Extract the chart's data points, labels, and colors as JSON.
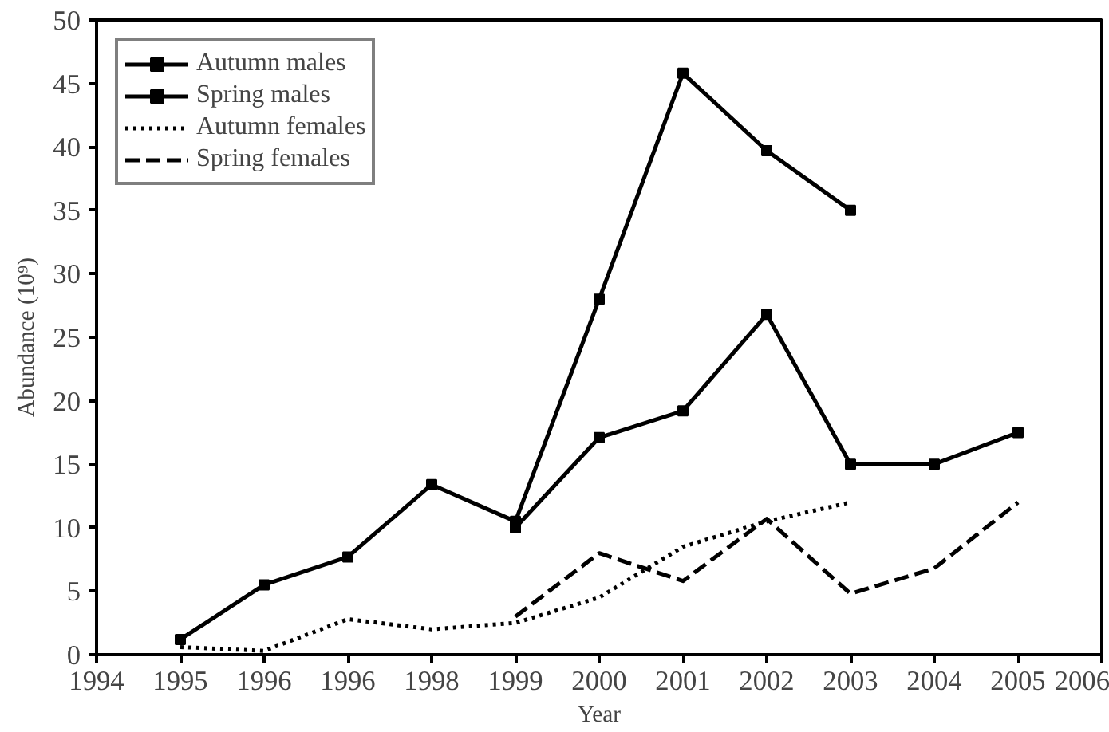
{
  "chart_data": {
    "type": "line",
    "xlabel": "Year",
    "ylabel": "Abundance (10⁹)",
    "categories": [
      "1994",
      "1995",
      "1996",
      "1996",
      "1998",
      "1999",
      "2000",
      "2001",
      "2002",
      "2003",
      "2004",
      "2005",
      "2006"
    ],
    "ylim": [
      0,
      50
    ],
    "yticks": [
      0,
      5,
      10,
      15,
      20,
      25,
      30,
      35,
      40,
      45,
      50
    ],
    "grid": false,
    "legend": "top left",
    "series": [
      {
        "name": "Autumn males",
        "color": "#000000",
        "marker": "square",
        "line_style": "solid",
        "values": [
          null,
          1.2,
          5.5,
          7.7,
          13.4,
          10.5,
          28,
          45.8,
          39.7,
          35,
          null,
          null,
          null
        ]
      },
      {
        "name": "Spring males",
        "color": "#000000",
        "marker": "square",
        "line_style": "solid",
        "values": [
          null,
          null,
          null,
          null,
          null,
          10,
          17.1,
          19.2,
          26.8,
          15,
          15,
          17.5,
          null
        ]
      },
      {
        "name": "Autumn females",
        "color": "#000000",
        "marker": "none",
        "line_style": "dotted",
        "values": [
          null,
          0.6,
          0.3,
          2.8,
          2,
          2.5,
          4.5,
          8.5,
          10.5,
          12,
          null,
          null,
          null
        ]
      },
      {
        "name": "Spring females",
        "color": "#000000",
        "marker": "none",
        "line_style": "dashed",
        "values": [
          null,
          null,
          null,
          null,
          null,
          3,
          8,
          5.8,
          10.7,
          4.8,
          6.8,
          12,
          null
        ]
      }
    ]
  }
}
